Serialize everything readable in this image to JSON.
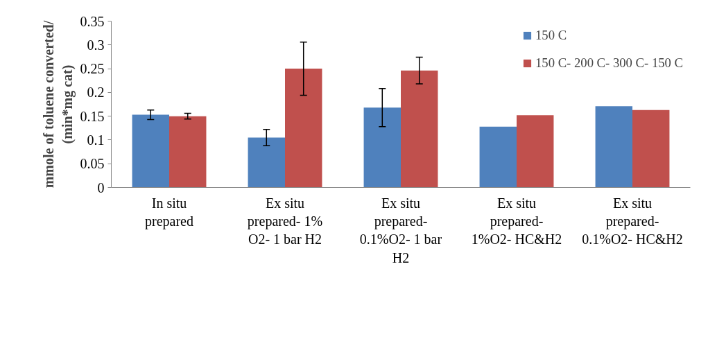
{
  "chart_data": {
    "type": "bar",
    "ylabel": "mmole of toluene converted/ (min*mg cat)",
    "categories": [
      "In situ prepared",
      "Ex situ prepared- 1% O2- 1 bar H2",
      "Ex situ prepared- 0.1%O2- 1 bar H2",
      "Ex situ prepared- 1%O2- HC&H2",
      "Ex situ prepared- 0.1%O2- HC&H2"
    ],
    "series": [
      {
        "name": "150 C",
        "color": "#4f81bd",
        "values": [
          0.153,
          0.105,
          0.168,
          0.128,
          0.171
        ],
        "errors": [
          0.01,
          0.017,
          0.04,
          null,
          null
        ]
      },
      {
        "name": "150 C- 200 C- 300 C- 150 C",
        "color": "#c0504d",
        "values": [
          0.15,
          0.25,
          0.246,
          0.152,
          0.163
        ],
        "errors": [
          0.006,
          0.056,
          0.028,
          null,
          null
        ]
      }
    ],
    "ylim": [
      0,
      0.35
    ],
    "yticks": [
      0,
      0.05,
      0.1,
      0.15,
      0.2,
      0.25,
      0.3,
      0.35
    ],
    "grid": false,
    "legend": "top right"
  }
}
